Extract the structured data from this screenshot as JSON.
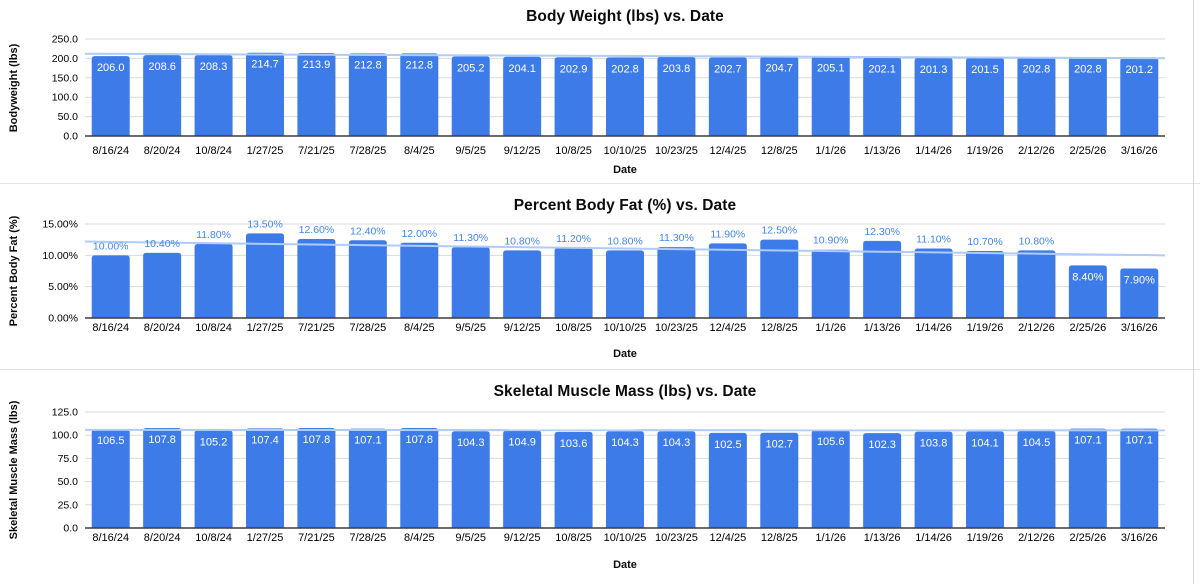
{
  "colors": {
    "bar": "#3d7ce8",
    "trendline": "#aecbfa",
    "label_inside": "#ffffff",
    "label_above": "#4285f4",
    "gridline": "#dadada",
    "axis_line": "#3c3c3c",
    "text": "#000000",
    "panel_divider": "#e2e2e2",
    "sheet_border": "#d8d8d8"
  },
  "chart_data": [
    {
      "type": "bar",
      "title": "Body Weight (lbs) vs. Date",
      "xlabel": "Date",
      "ylabel": "Bodyweight (lbs)",
      "ylim": [
        0,
        250
      ],
      "y_ticks": [
        "0.0",
        "50.0",
        "100.0",
        "150.0",
        "200.0",
        "250.0"
      ],
      "grid": true,
      "legend": "none",
      "categories": [
        "8/16/24",
        "8/20/24",
        "10/8/24",
        "1/27/25",
        "7/21/25",
        "7/28/25",
        "8/4/25",
        "9/5/25",
        "9/12/25",
        "10/8/25",
        "10/10/25",
        "10/23/25",
        "12/4/25",
        "12/8/25",
        "1/1/26",
        "1/13/26",
        "1/14/26",
        "1/19/26",
        "2/12/26",
        "2/25/26",
        "3/16/26"
      ],
      "values": [
        206.0,
        208.6,
        208.3,
        214.7,
        213.9,
        212.8,
        212.8,
        205.2,
        204.1,
        202.9,
        202.8,
        203.8,
        202.7,
        204.7,
        205.1,
        202.1,
        201.3,
        201.5,
        202.8,
        202.8,
        201.2
      ],
      "data_labels": [
        "206.0",
        "208.6",
        "208.3",
        "214.7",
        "213.9",
        "212.8",
        "212.8",
        "205.2",
        "204.1",
        "202.9",
        "202.8",
        "203.8",
        "202.7",
        "204.7",
        "205.1",
        "202.1",
        "201.3",
        "201.5",
        "202.8",
        "202.8",
        "201.2"
      ],
      "label_placement": "inside",
      "inside_label_indices": [],
      "trendline": {
        "type": "linear",
        "start": 212.0,
        "end": 200.5
      }
    },
    {
      "type": "bar",
      "title": "Percent Body Fat (%) vs. Date",
      "xlabel": "Date",
      "ylabel": "Percent Body Fat (%)",
      "ylim": [
        0,
        15
      ],
      "y_ticks": [
        "0.00%",
        "5.00%",
        "10.00%",
        "15.00%"
      ],
      "grid": true,
      "legend": "none",
      "categories": [
        "8/16/24",
        "8/20/24",
        "10/8/24",
        "1/27/25",
        "7/21/25",
        "7/28/25",
        "8/4/25",
        "9/5/25",
        "9/12/25",
        "10/8/25",
        "10/10/25",
        "10/23/25",
        "12/4/25",
        "12/8/25",
        "1/1/26",
        "1/13/26",
        "1/14/26",
        "1/19/26",
        "2/12/26",
        "2/25/26",
        "3/16/26"
      ],
      "values": [
        10.0,
        10.4,
        11.8,
        13.5,
        12.6,
        12.4,
        12.0,
        11.3,
        10.8,
        11.2,
        10.8,
        11.3,
        11.9,
        12.5,
        10.9,
        12.3,
        11.1,
        10.7,
        10.8,
        8.4,
        7.9
      ],
      "data_labels": [
        "10.00%",
        "10.40%",
        "11.80%",
        "13.50%",
        "12.60%",
        "12.40%",
        "12.00%",
        "11.30%",
        "10.80%",
        "11.20%",
        "10.80%",
        "11.30%",
        "11.90%",
        "12.50%",
        "10.90%",
        "12.30%",
        "11.10%",
        "10.70%",
        "10.80%",
        "8.40%",
        "7.90%"
      ],
      "label_placement": "above",
      "inside_label_indices": [
        19,
        20
      ],
      "trendline": {
        "type": "linear",
        "start": 12.2,
        "end": 10.0
      }
    },
    {
      "type": "bar",
      "title": "Skeletal Muscle Mass (lbs) vs. Date",
      "xlabel": "Date",
      "ylabel": "Skeletal Muscle Mass (lbs)",
      "ylim": [
        0,
        125
      ],
      "y_ticks": [
        "0.0",
        "25.0",
        "50.0",
        "75.0",
        "100.0",
        "125.0"
      ],
      "grid": true,
      "legend": "none",
      "categories": [
        "8/16/24",
        "8/20/24",
        "10/8/24",
        "1/27/25",
        "7/21/25",
        "7/28/25",
        "8/4/25",
        "9/5/25",
        "9/12/25",
        "10/8/25",
        "10/10/25",
        "10/23/25",
        "12/4/25",
        "12/8/25",
        "1/1/26",
        "1/13/26",
        "1/14/26",
        "1/19/26",
        "2/12/26",
        "2/25/26",
        "3/16/26"
      ],
      "values": [
        106.5,
        107.8,
        105.2,
        107.4,
        107.8,
        107.1,
        107.8,
        104.3,
        104.9,
        103.6,
        104.3,
        104.3,
        102.5,
        102.7,
        105.6,
        102.3,
        103.8,
        104.1,
        104.5,
        107.1,
        107.1
      ],
      "data_labels": [
        "106.5",
        "107.8",
        "105.2",
        "107.4",
        "107.8",
        "107.1",
        "107.8",
        "104.3",
        "104.9",
        "103.6",
        "104.3",
        "104.3",
        "102.5",
        "102.7",
        "105.6",
        "102.3",
        "103.8",
        "104.1",
        "104.5",
        "107.1",
        "107.1"
      ],
      "label_placement": "inside",
      "inside_label_indices": [],
      "trendline": {
        "type": "linear",
        "start": 105.7,
        "end": 105.2
      }
    }
  ]
}
